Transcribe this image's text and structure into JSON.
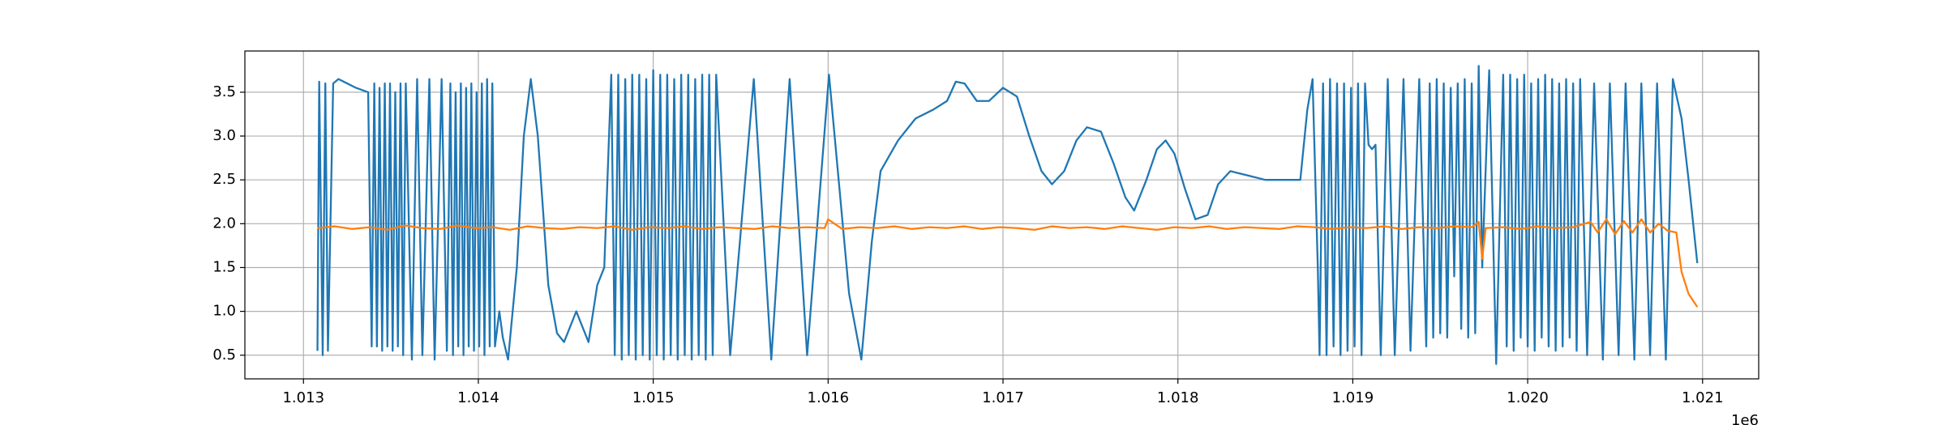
{
  "chart_data": {
    "type": "line",
    "x_offset_label": "1e6",
    "xlim": [
      1012665,
      1021321
    ],
    "ylim": [
      0.23,
      3.97
    ],
    "xticks": [
      {
        "value": 1013000,
        "label": "1.013"
      },
      {
        "value": 1014000,
        "label": "1.014"
      },
      {
        "value": 1015000,
        "label": "1.015"
      },
      {
        "value": 1016000,
        "label": "1.016"
      },
      {
        "value": 1017000,
        "label": "1.017"
      },
      {
        "value": 1018000,
        "label": "1.018"
      },
      {
        "value": 1019000,
        "label": "1.019"
      },
      {
        "value": 1020000,
        "label": "1.020"
      },
      {
        "value": 1021000,
        "label": "1.021"
      }
    ],
    "yticks": [
      0.5,
      {
        "value": 1,
        "label": "1.0"
      },
      1.5,
      {
        "value": 2,
        "label": "2.0"
      },
      2.5,
      {
        "value": 3,
        "label": "3.0"
      },
      3.5
    ],
    "grid": true,
    "series": [
      {
        "color": "#1f77b4",
        "x": [
          1013080,
          1013090,
          1013110,
          1013125,
          1013140,
          1013170,
          1013200,
          1013250,
          1013300,
          1013370,
          1013390,
          1013405,
          1013420,
          1013435,
          1013450,
          1013465,
          1013480,
          1013495,
          1013510,
          1013525,
          1013540,
          1013555,
          1013570,
          1013585,
          1013620,
          1013650,
          1013680,
          1013720,
          1013750,
          1013790,
          1013820,
          1013840,
          1013855,
          1013870,
          1013885,
          1013900,
          1013915,
          1013930,
          1013945,
          1013960,
          1013975,
          1013990,
          1014005,
          1014020,
          1014035,
          1014050,
          1014065,
          1014080,
          1014095,
          1014120,
          1014140,
          1014170,
          1014220,
          1014260,
          1014300,
          1014340,
          1014400,
          1014450,
          1014490,
          1014560,
          1014600,
          1014630,
          1014680,
          1014720,
          1014760,
          1014780,
          1014800,
          1014820,
          1014840,
          1014860,
          1014880,
          1014900,
          1014920,
          1014940,
          1014960,
          1014980,
          1015000,
          1015020,
          1015040,
          1015060,
          1015080,
          1015100,
          1015120,
          1015140,
          1015160,
          1015180,
          1015200,
          1015220,
          1015240,
          1015260,
          1015280,
          1015300,
          1015320,
          1015340,
          1015360,
          1015440,
          1015575,
          1015675,
          1015780,
          1015880,
          1016005,
          1016120,
          1016190,
          1016250,
          1016300,
          1016400,
          1016500,
          1016600,
          1016680,
          1016730,
          1016780,
          1016850,
          1016920,
          1017000,
          1017080,
          1017150,
          1017220,
          1017280,
          1017350,
          1017420,
          1017480,
          1017560,
          1017630,
          1017700,
          1017750,
          1017820,
          1017880,
          1017930,
          1017980,
          1018040,
          1018100,
          1018170,
          1018230,
          1018300,
          1018400,
          1018500,
          1018600,
          1018700,
          1018740,
          1018770,
          1018800,
          1018810,
          1018830,
          1018850,
          1018870,
          1018890,
          1018910,
          1018930,
          1018950,
          1018970,
          1018990,
          1019010,
          1019030,
          1019050,
          1019070,
          1019090,
          1019110,
          1019130,
          1019160,
          1019200,
          1019240,
          1019290,
          1019330,
          1019380,
          1019420,
          1019440,
          1019460,
          1019480,
          1019500,
          1019520,
          1019540,
          1019560,
          1019580,
          1019600,
          1019620,
          1019640,
          1019660,
          1019680,
          1019700,
          1019720,
          1019740,
          1019780,
          1019820,
          1019860,
          1019880,
          1019900,
          1019920,
          1019940,
          1019960,
          1019980,
          1020000,
          1020020,
          1020040,
          1020060,
          1020080,
          1020100,
          1020120,
          1020140,
          1020160,
          1020180,
          1020200,
          1020220,
          1020240,
          1020260,
          1020280,
          1020300,
          1020340,
          1020380,
          1020430,
          1020470,
          1020520,
          1020560,
          1020610,
          1020650,
          1020700,
          1020740,
          1020790,
          1020830,
          1020880,
          1020920,
          1020970
        ],
        "values": [
          0.55,
          3.62,
          0.5,
          3.6,
          0.55,
          3.6,
          3.65,
          3.6,
          3.55,
          3.5,
          0.6,
          3.6,
          0.6,
          3.55,
          0.55,
          3.6,
          0.6,
          3.6,
          0.55,
          3.5,
          0.6,
          3.6,
          0.5,
          3.6,
          0.45,
          3.65,
          0.5,
          3.65,
          0.45,
          3.65,
          0.55,
          3.6,
          0.5,
          3.5,
          0.6,
          3.6,
          0.5,
          3.55,
          0.6,
          3.6,
          0.55,
          3.5,
          0.6,
          3.6,
          0.5,
          3.65,
          0.6,
          3.6,
          0.6,
          1.0,
          0.7,
          0.45,
          1.5,
          3.0,
          3.65,
          3.0,
          1.3,
          0.75,
          0.65,
          1.0,
          0.8,
          0.65,
          1.3,
          1.5,
          3.7,
          0.5,
          3.7,
          0.45,
          3.65,
          0.5,
          3.7,
          0.45,
          3.7,
          0.5,
          3.65,
          0.45,
          3.75,
          0.5,
          3.7,
          0.45,
          3.7,
          0.5,
          3.65,
          0.45,
          3.7,
          0.5,
          3.7,
          0.45,
          3.65,
          0.5,
          3.7,
          0.45,
          3.7,
          0.5,
          3.7,
          0.5,
          3.65,
          0.45,
          3.65,
          0.5,
          3.7,
          1.2,
          0.45,
          1.8,
          2.6,
          2.95,
          3.2,
          3.3,
          3.4,
          3.62,
          3.6,
          3.4,
          3.4,
          3.55,
          3.45,
          3.0,
          2.6,
          2.45,
          2.6,
          2.95,
          3.1,
          3.05,
          2.7,
          2.3,
          2.15,
          2.5,
          2.85,
          2.95,
          2.8,
          2.4,
          2.05,
          2.1,
          2.45,
          2.6,
          2.55,
          2.5,
          2.5,
          2.5,
          3.3,
          3.65,
          1.5,
          0.5,
          3.6,
          0.5,
          3.65,
          0.6,
          3.6,
          0.5,
          3.6,
          0.55,
          3.55,
          0.6,
          3.6,
          0.5,
          3.6,
          2.9,
          2.85,
          2.9,
          0.5,
          3.65,
          0.5,
          3.65,
          0.55,
          3.65,
          0.6,
          3.6,
          0.7,
          3.65,
          0.75,
          3.6,
          0.7,
          3.55,
          1.4,
          3.6,
          0.8,
          3.65,
          0.7,
          3.6,
          0.75,
          3.8,
          1.5,
          3.75,
          0.4,
          3.7,
          0.6,
          3.7,
          0.55,
          3.65,
          0.7,
          3.7,
          0.6,
          3.6,
          0.55,
          3.65,
          0.7,
          3.7,
          0.6,
          3.65,
          0.55,
          3.6,
          0.6,
          3.65,
          0.7,
          3.6,
          0.55,
          3.65,
          0.5,
          3.6,
          0.45,
          3.6,
          0.5,
          3.6,
          0.45,
          3.6,
          0.5,
          3.6,
          0.45,
          3.65,
          3.2,
          2.5,
          1.55
        ]
      },
      {
        "color": "#ff7f0e",
        "x": [
          1013080,
          1013180,
          1013280,
          1013380,
          1013480,
          1013580,
          1013680,
          1013780,
          1013880,
          1013980,
          1014080,
          1014180,
          1014280,
          1014380,
          1014480,
          1014580,
          1014680,
          1014780,
          1014880,
          1014980,
          1015080,
          1015180,
          1015280,
          1015380,
          1015480,
          1015580,
          1015680,
          1015780,
          1015880,
          1015980,
          1016000,
          1016080,
          1016180,
          1016280,
          1016380,
          1016480,
          1016580,
          1016680,
          1016780,
          1016880,
          1016980,
          1017080,
          1017180,
          1017280,
          1017380,
          1017480,
          1017580,
          1017680,
          1017780,
          1017880,
          1017980,
          1018080,
          1018180,
          1018280,
          1018380,
          1018480,
          1018580,
          1018680,
          1018780,
          1018880,
          1018980,
          1019080,
          1019180,
          1019280,
          1019380,
          1019480,
          1019580,
          1019680,
          1019720,
          1019740,
          1019760,
          1019860,
          1019960,
          1020060,
          1020160,
          1020260,
          1020360,
          1020400,
          1020450,
          1020500,
          1020550,
          1020600,
          1020650,
          1020700,
          1020750,
          1020800,
          1020850,
          1020880,
          1020920,
          1020970
        ],
        "values": [
          1.95,
          1.97,
          1.94,
          1.96,
          1.93,
          1.98,
          1.95,
          1.94,
          1.98,
          1.95,
          1.96,
          1.93,
          1.97,
          1.95,
          1.94,
          1.96,
          1.95,
          1.97,
          1.93,
          1.96,
          1.95,
          1.97,
          1.94,
          1.96,
          1.95,
          1.94,
          1.97,
          1.95,
          1.96,
          1.95,
          2.05,
          1.94,
          1.96,
          1.95,
          1.97,
          1.94,
          1.96,
          1.95,
          1.97,
          1.94,
          1.96,
          1.95,
          1.93,
          1.97,
          1.95,
          1.96,
          1.94,
          1.97,
          1.95,
          1.93,
          1.96,
          1.95,
          1.97,
          1.94,
          1.96,
          1.95,
          1.94,
          1.97,
          1.96,
          1.94,
          1.96,
          1.95,
          1.97,
          1.94,
          1.96,
          1.95,
          1.97,
          1.96,
          2.02,
          1.6,
          1.95,
          1.96,
          1.94,
          1.97,
          1.95,
          1.96,
          2.02,
          1.9,
          2.05,
          1.88,
          2.03,
          1.9,
          2.05,
          1.9,
          2.0,
          1.92,
          1.9,
          1.45,
          1.2,
          1.05
        ]
      }
    ]
  }
}
